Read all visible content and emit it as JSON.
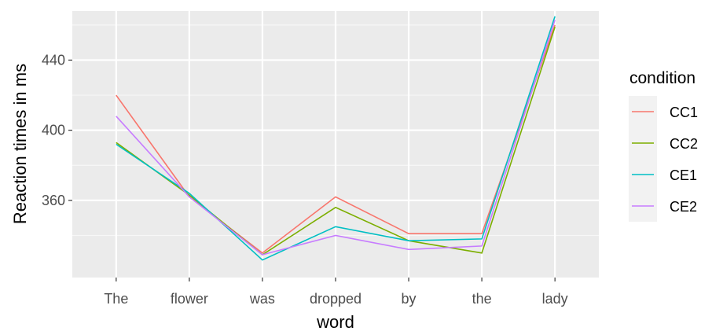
{
  "chart_data": {
    "type": "line",
    "xlabel": "word",
    "ylabel": "Reaction times in ms",
    "categories": [
      "The",
      "flower",
      "was",
      "dropped",
      "by",
      "the",
      "lady"
    ],
    "y_ticks": [
      360,
      400,
      440
    ],
    "ylim": [
      316,
      468
    ],
    "grid": true,
    "legend_title": "condition",
    "legend_position": "right",
    "series": [
      {
        "name": "CC1",
        "color": "#F8766D",
        "values": [
          420,
          362,
          330,
          362,
          341,
          341,
          460
        ]
      },
      {
        "name": "CC2",
        "color": "#7CAE00",
        "values": [
          393,
          363,
          329,
          356,
          337,
          330,
          459
        ]
      },
      {
        "name": "CE1",
        "color": "#00BFC4",
        "values": [
          392,
          364,
          326,
          345,
          337,
          338,
          465
        ]
      },
      {
        "name": "CE2",
        "color": "#C77CFF",
        "values": [
          408,
          362,
          329,
          340,
          332,
          334,
          463
        ]
      }
    ]
  }
}
